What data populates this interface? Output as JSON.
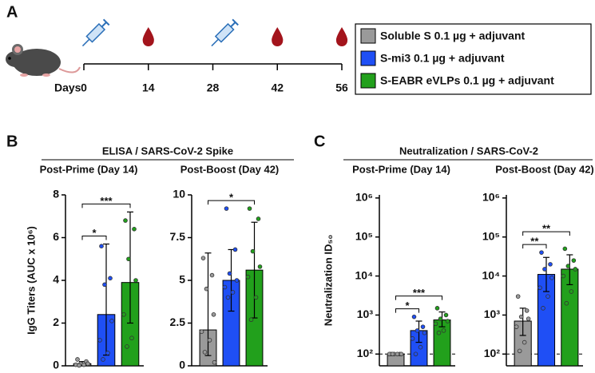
{
  "panels": [
    "A",
    "B",
    "C"
  ],
  "timeline": {
    "label": "Days",
    "days": [
      0,
      14,
      28,
      42,
      56
    ]
  },
  "legend": [
    {
      "name": "Soluble S 0.1 µg + adjuvant",
      "color": "#9a9a9a"
    },
    {
      "name": "S-mi3 0.1 µg + adjuvant",
      "color": "#1f4ff5"
    },
    {
      "name": "S-EABR eVLPs 0.1 µg + adjuvant",
      "color": "#22a01c"
    }
  ],
  "group_titles": [
    "ELISA / SARS-CoV-2 Spike",
    "Neutralization / SARS-CoV-2"
  ],
  "chart_data": [
    {
      "type": "bar",
      "title": "Post-Prime (Day 14)",
      "ylabel": "IgG Titers (AUC x 10⁶)",
      "log": false,
      "values": [
        0.1,
        2.4,
        3.9
      ],
      "error_ranges": [
        [
          0,
          0.2
        ],
        [
          0.5,
          5.7
        ],
        [
          2.0,
          7.2
        ]
      ],
      "points": [
        [
          0.3,
          0.2,
          0.1,
          0.1,
          0.05,
          0.05,
          0.02
        ],
        [
          5.6,
          4.1,
          3.8,
          2.1,
          1.2,
          0.6,
          0.3
        ],
        [
          6.8,
          6.4,
          5.0,
          4.0,
          2.4,
          1.3,
          0.9
        ]
      ],
      "ylim": [
        0,
        8
      ],
      "yticks": [
        0,
        2,
        4,
        6,
        8
      ],
      "significance": [
        {
          "from": 0,
          "to": 1,
          "label": "*"
        },
        {
          "from": 0,
          "to": 2,
          "label": "***"
        }
      ]
    },
    {
      "type": "bar",
      "title": "Post-Boost (Day 42)",
      "log": false,
      "values": [
        2.1,
        5.0,
        5.6
      ],
      "error_ranges": [
        [
          0.6,
          6.6
        ],
        [
          3.2,
          6.8
        ],
        [
          2.8,
          8.4
        ]
      ],
      "points": [
        [
          6.3,
          5.3,
          4.5,
          3.0,
          2.0,
          1.5,
          0.8,
          0.2
        ],
        [
          9.2,
          6.8,
          5.4,
          5.0,
          4.6,
          4.3,
          4.0
        ],
        [
          9.2,
          8.6,
          6.7,
          5.8,
          5.2,
          4.0,
          2.7
        ]
      ],
      "ylim": [
        0,
        10
      ],
      "yticks": [
        0,
        2.5,
        5,
        7.5,
        10
      ],
      "significance": [
        {
          "from": 0,
          "to": 2,
          "label": "*"
        }
      ]
    },
    {
      "type": "bar",
      "title": "Post-Prime (Day 14)",
      "ylabel": "Neutralization ID₅₀",
      "log": true,
      "values": [
        100,
        400,
        750
      ],
      "error_ranges": [
        [
          100,
          100
        ],
        [
          200,
          700
        ],
        [
          500,
          1200
        ]
      ],
      "points": [
        [
          100,
          100,
          100,
          100,
          100,
          100,
          100
        ],
        [
          900,
          500,
          400,
          350,
          250,
          150,
          100
        ],
        [
          1500,
          1000,
          800,
          700,
          600,
          400,
          350
        ]
      ],
      "ylim": [
        50,
        1200000
      ],
      "yticks": [
        {
          "value": 100,
          "label": "10²"
        },
        {
          "value": 1000,
          "label": "10³"
        },
        {
          "value": 10000,
          "label": "10⁴"
        },
        {
          "value": 100000,
          "label": "10⁵"
        },
        {
          "value": 1000000,
          "label": "10⁶"
        }
      ],
      "reference_line": 100,
      "significance": [
        {
          "from": 0,
          "to": 1,
          "label": "*"
        },
        {
          "from": 0,
          "to": 2,
          "label": "***"
        }
      ]
    },
    {
      "type": "bar",
      "title": "Post-Boost (Day 42)",
      "log": true,
      "values": [
        700,
        11000,
        15000
      ],
      "error_ranges": [
        [
          300,
          1500
        ],
        [
          4000,
          30000
        ],
        [
          6000,
          35000
        ]
      ],
      "points": [
        [
          3000,
          1300,
          900,
          800,
          500,
          200,
          120
        ],
        [
          40000,
          20000,
          15000,
          9000,
          5000,
          3000,
          1500
        ],
        [
          50000,
          25000,
          18000,
          15000,
          10000,
          4000,
          2000
        ]
      ],
      "ylim": [
        50,
        1200000
      ],
      "yticks": [
        {
          "value": 100,
          "label": "10²"
        },
        {
          "value": 1000,
          "label": "10³"
        },
        {
          "value": 10000,
          "label": "10⁴"
        },
        {
          "value": 100000,
          "label": "10⁵"
        },
        {
          "value": 1000000,
          "label": "10⁶"
        }
      ],
      "reference_line": 100,
      "significance": [
        {
          "from": 0,
          "to": 1,
          "label": "**"
        },
        {
          "from": 0,
          "to": 2,
          "label": "**"
        }
      ]
    }
  ]
}
